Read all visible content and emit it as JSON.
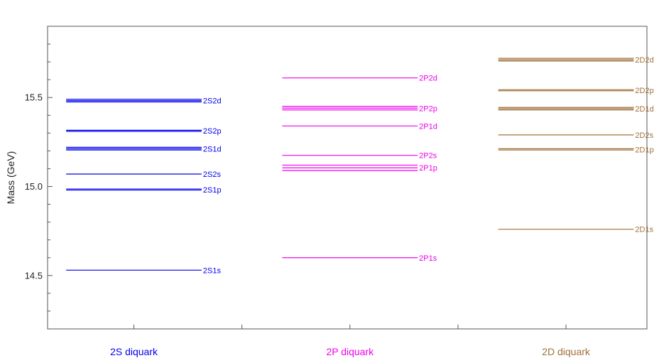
{
  "chart_data": {
    "type": "level-diagram",
    "ylabel": "Mass (GeV)",
    "ylim": [
      14.2,
      15.9
    ],
    "y_ticks": [
      14.5,
      15.0,
      15.5
    ],
    "y_tick_labels": [
      "14.5",
      "15.0",
      "15.5"
    ],
    "y_minor_step": 0.1,
    "grid": false,
    "categories": [
      "2S diquark",
      "2P diquark",
      "2D diquark"
    ],
    "series": [
      {
        "name": "2S diquark",
        "color": "#0000ee",
        "levels": [
          {
            "label": "2S1s",
            "masses": [
              14.53
            ]
          },
          {
            "label": "2S1p",
            "masses": [
              14.98,
              14.986
            ]
          },
          {
            "label": "2S2s",
            "masses": [
              15.07
            ]
          },
          {
            "label": "2S1d",
            "masses": [
              15.205,
              15.212,
              15.22
            ]
          },
          {
            "label": "2S2p",
            "masses": [
              15.31,
              15.316
            ]
          },
          {
            "label": "2S2d",
            "masses": [
              15.475,
              15.482,
              15.49
            ]
          }
        ]
      },
      {
        "name": "2P diquark",
        "color": "#ee00ee",
        "levels": [
          {
            "label": "2P1s",
            "masses": [
              14.6
            ]
          },
          {
            "label": "2P1p",
            "masses": [
              15.09,
              15.105,
              15.12
            ]
          },
          {
            "label": "2P2s",
            "masses": [
              15.175
            ]
          },
          {
            "label": "2P1d",
            "masses": [
              15.34
            ]
          },
          {
            "label": "2P2p",
            "masses": [
              15.43,
              15.44,
              15.45
            ]
          },
          {
            "label": "2P2d",
            "masses": [
              15.61
            ]
          }
        ]
      },
      {
        "name": "2D diquark",
        "color": "#a0703a",
        "levels": [
          {
            "label": "2D1s",
            "masses": [
              14.76
            ]
          },
          {
            "label": "2D1p",
            "masses": [
              15.205,
              15.212
            ]
          },
          {
            "label": "2D2s",
            "masses": [
              15.29
            ]
          },
          {
            "label": "2D1d",
            "masses": [
              15.43,
              15.437,
              15.444
            ]
          },
          {
            "label": "2D2p",
            "masses": [
              15.538,
              15.544
            ]
          },
          {
            "label": "2D2d",
            "masses": [
              15.705,
              15.712,
              15.72
            ]
          }
        ]
      }
    ]
  }
}
